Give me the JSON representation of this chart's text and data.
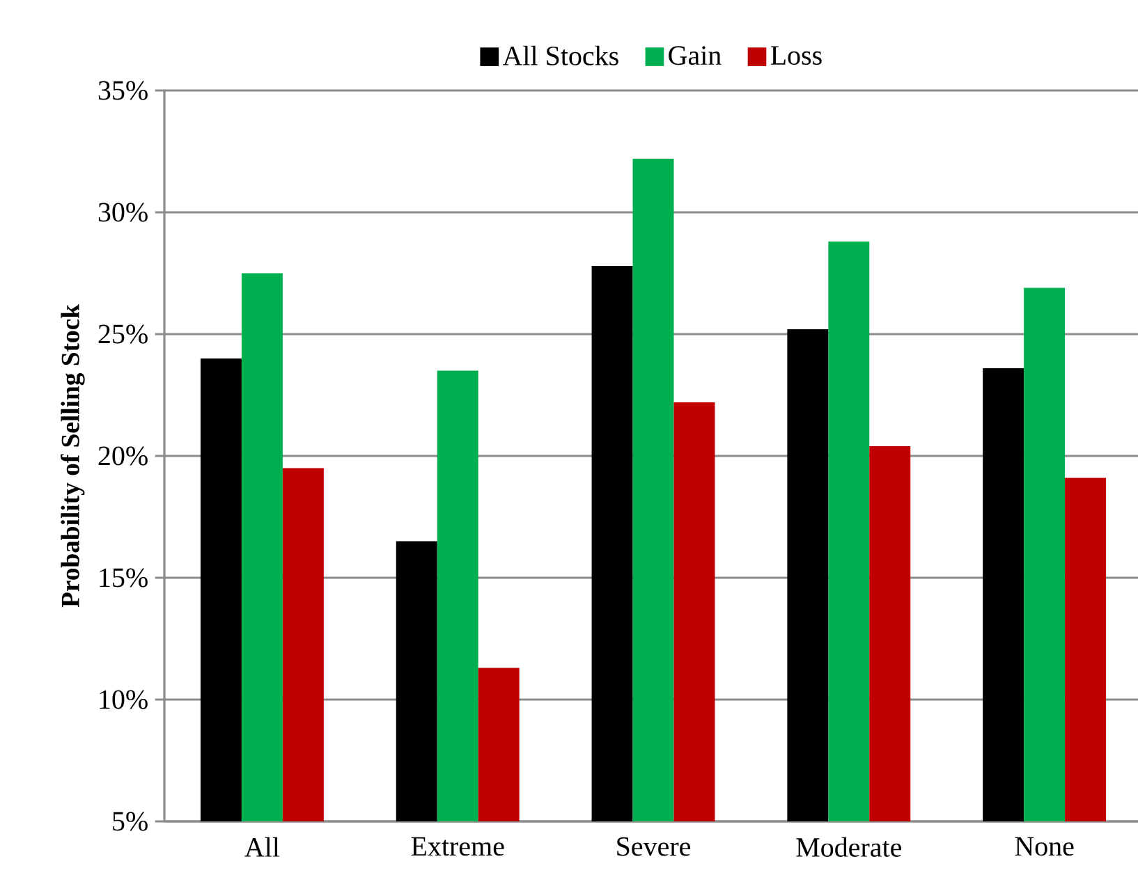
{
  "chart_data": {
    "type": "bar",
    "ylabel": "Probability of Selling Stock",
    "categories": [
      "All",
      "Extreme",
      "Severe",
      "Moderate",
      "None"
    ],
    "series": [
      {
        "name": "All Stocks",
        "color": "#000000",
        "values": [
          24.0,
          16.5,
          27.8,
          25.2,
          23.6
        ]
      },
      {
        "name": "Gain",
        "color": "#00b050",
        "values": [
          27.5,
          23.5,
          32.2,
          28.8,
          26.9
        ]
      },
      {
        "name": "Loss",
        "color": "#c00000",
        "values": [
          19.5,
          11.3,
          22.2,
          20.4,
          19.1
        ]
      }
    ],
    "ylim": [
      5,
      35
    ],
    "yticks": [
      {
        "value": 5,
        "label": "5%"
      },
      {
        "value": 10,
        "label": "10%"
      },
      {
        "value": 15,
        "label": "15%"
      },
      {
        "value": 20,
        "label": "20%"
      },
      {
        "value": 25,
        "label": "25%"
      },
      {
        "value": 30,
        "label": "30%"
      },
      {
        "value": 35,
        "label": "35%"
      }
    ],
    "grid": "y",
    "legend": "top"
  }
}
